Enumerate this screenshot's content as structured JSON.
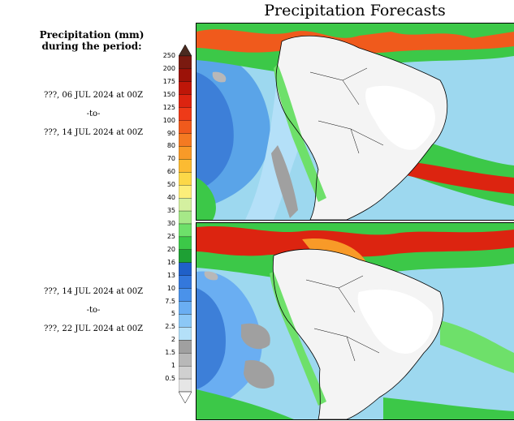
{
  "title": "Precipitation Forecasts",
  "legend": {
    "title_line1": "Precipitation (mm)",
    "title_line2": "during the period:",
    "levels": [
      "250",
      "200",
      "175",
      "150",
      "125",
      "100",
      "90",
      "80",
      "70",
      "60",
      "50",
      "40",
      "35",
      "30",
      "25",
      "20",
      "16",
      "13",
      "10",
      "7.5",
      "5",
      "2.5",
      "2",
      "1.5",
      "1",
      "0.5"
    ],
    "colors": [
      "#7a1a10",
      "#9c1208",
      "#be1608",
      "#dc2410",
      "#ee3a18",
      "#f05a1c",
      "#f47a22",
      "#f89a28",
      "#fcbb32",
      "#fcd848",
      "#fcee7a",
      "#d4f0a0",
      "#a6e888",
      "#6ee06a",
      "#3cc848",
      "#1ea034",
      "#2060c8",
      "#3478dc",
      "#4a92ea",
      "#6aaef2",
      "#8cc8f6",
      "#b4e0f8",
      "#a0a0a0",
      "#b8b8b8",
      "#d0d0d0",
      "#e6e6e6"
    ]
  },
  "periods": [
    {
      "start": "???, 06 JUL 2024 at 00Z",
      "sep": "-to-",
      "end": "???, 14 JUL 2024 at 00Z"
    },
    {
      "start": "???, 14 JUL 2024 at 00Z",
      "sep": "-to-",
      "end": "???, 22 JUL 2024 at 00Z"
    }
  ]
}
